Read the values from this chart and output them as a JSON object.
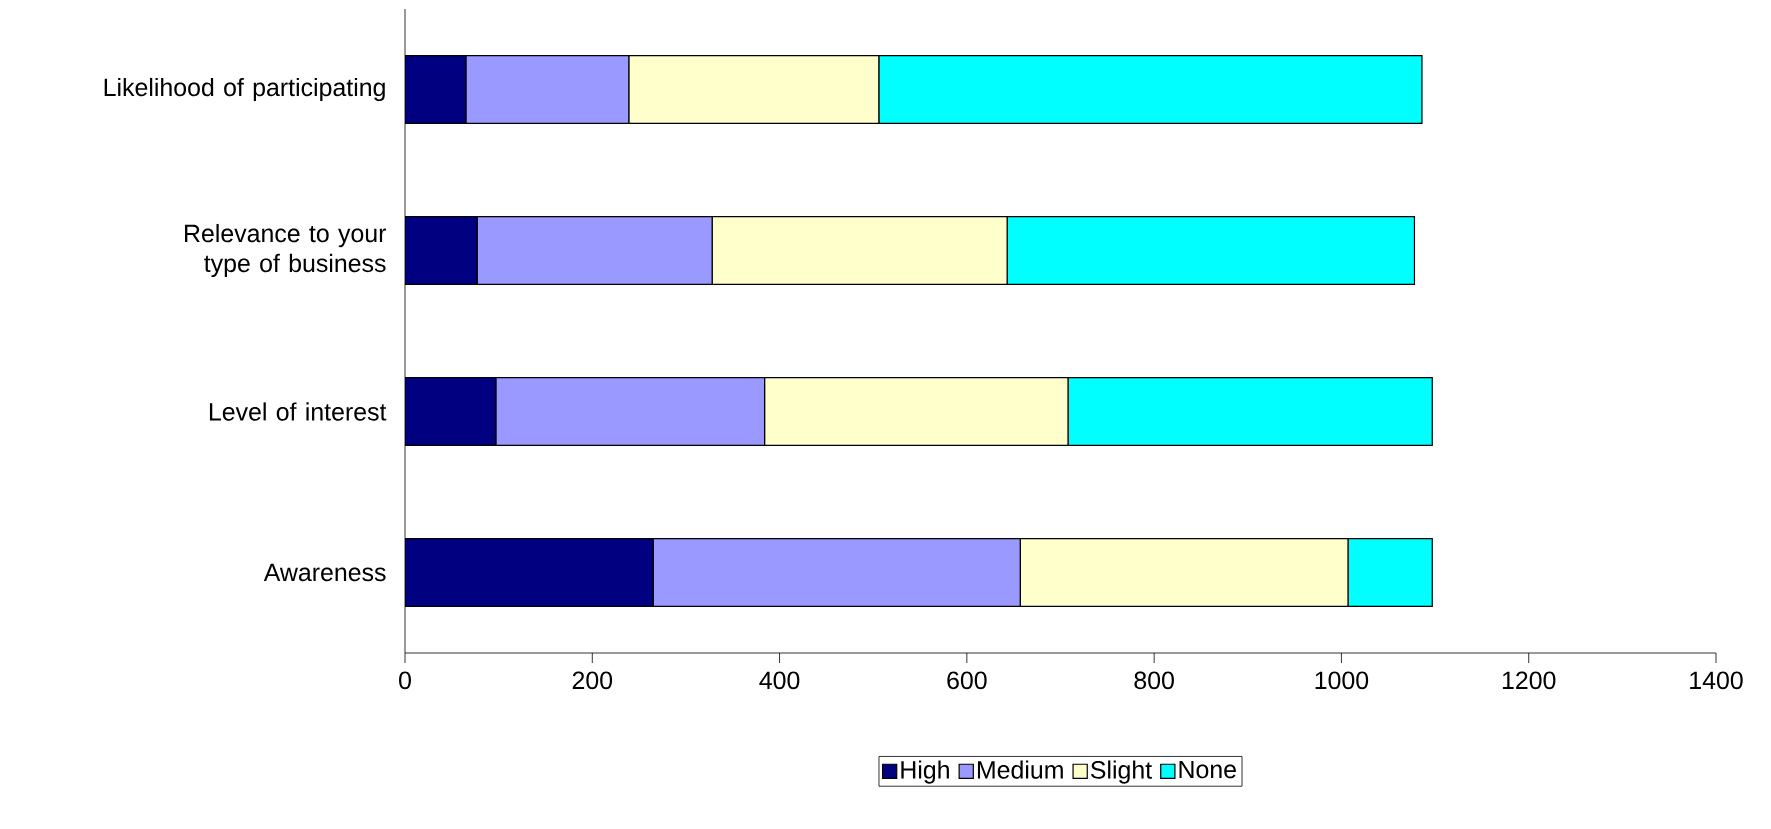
{
  "chart_data": {
    "type": "bar",
    "orientation": "horizontal",
    "stacked": true,
    "categories": [
      "Likelihood of participating",
      "Relevance to your type of business",
      "Level of interest",
      "Awareness"
    ],
    "series": [
      {
        "name": "High",
        "color": "#000080",
        "values": [
          65,
          77,
          97,
          265
        ]
      },
      {
        "name": "Medium",
        "color": "#9999ff",
        "values": [
          174,
          251,
          287,
          392
        ]
      },
      {
        "name": "Slight",
        "color": "#ffffcc",
        "values": [
          267,
          315,
          324,
          350
        ]
      },
      {
        "name": "None",
        "color": "#00ffff",
        "values": [
          580,
          435,
          389,
          90
        ]
      }
    ],
    "xlim": [
      0,
      1400
    ],
    "xticks": [
      0,
      200,
      400,
      600,
      800,
      1000,
      1200,
      1400
    ],
    "legend": "bottom",
    "grid": false
  }
}
